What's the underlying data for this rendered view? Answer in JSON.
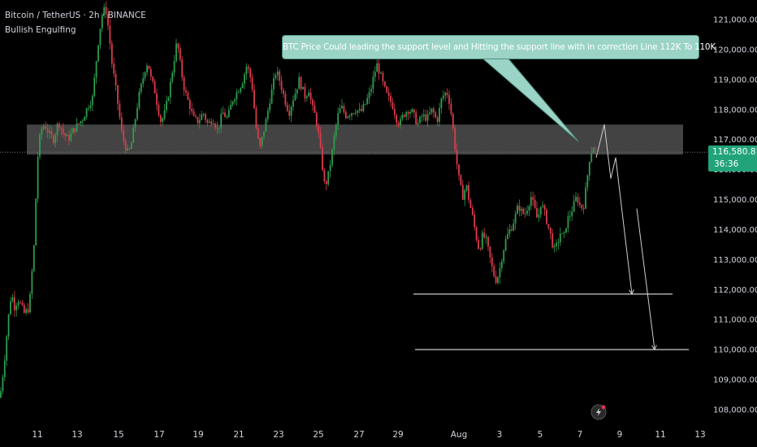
{
  "header": {
    "symbol_line": "Bitcoin / TetherUS · 2h · BINANCE",
    "indicator": "Bullish Engulfing"
  },
  "annotation": {
    "text": "BTC Price Could leading the support level and Hitting the support line with in correction Line 112K To 110K"
  },
  "last_price": {
    "value": "116,580.81",
    "countdown": "36:36"
  },
  "colors": {
    "background": "#000000",
    "up_candle": "#2e9e4f",
    "down_candle": "#d93d4b",
    "zone": "#5a5a5a",
    "callout": "#9bd4c6",
    "price_tag": "#22a37a"
  },
  "icons": [
    "lightning-icon"
  ],
  "chart_data": {
    "type": "candlestick",
    "ylim": [
      107800,
      121400
    ],
    "y_ticks": [
      "108,000.00",
      "109,000.00",
      "110,000.00",
      "111,000.00",
      "112,000.00",
      "113,000.00",
      "114,000.00",
      "115,000.00",
      "116,000.00",
      "117,000.00",
      "118,000.00",
      "119,000.00",
      "120,000.00",
      "121,000.00"
    ],
    "x_ticks": [
      "11",
      "13",
      "15",
      "17",
      "19",
      "21",
      "23",
      "25",
      "27",
      "29",
      "Aug",
      "3",
      "5",
      "7",
      "9",
      "11",
      "13"
    ],
    "price_path": [
      [
        0,
        108400
      ],
      [
        5,
        109500
      ],
      [
        10,
        111000
      ],
      [
        14,
        111900
      ],
      [
        18,
        111400
      ],
      [
        22,
        111700
      ],
      [
        30,
        111200
      ],
      [
        36,
        111400
      ],
      [
        42,
        113500
      ],
      [
        46,
        116300
      ],
      [
        50,
        117300
      ],
      [
        55,
        117500
      ],
      [
        60,
        117200
      ],
      [
        66,
        117000
      ],
      [
        72,
        117600
      ],
      [
        78,
        117200
      ],
      [
        84,
        117000
      ],
      [
        90,
        117300
      ],
      [
        96,
        117500
      ],
      [
        102,
        117700
      ],
      [
        108,
        118100
      ],
      [
        114,
        118400
      ],
      [
        118,
        119500
      ],
      [
        122,
        120500
      ],
      [
        126,
        121200
      ],
      [
        130,
        121400
      ],
      [
        134,
        120600
      ],
      [
        138,
        119500
      ],
      [
        142,
        118800
      ],
      [
        146,
        118000
      ],
      [
        150,
        117200
      ],
      [
        154,
        116800
      ],
      [
        158,
        116500
      ],
      [
        162,
        116900
      ],
      [
        166,
        117600
      ],
      [
        170,
        118300
      ],
      [
        174,
        118800
      ],
      [
        178,
        119300
      ],
      [
        182,
        119600
      ],
      [
        186,
        119000
      ],
      [
        190,
        118700
      ],
      [
        194,
        118100
      ],
      [
        198,
        117600
      ],
      [
        202,
        117800
      ],
      [
        206,
        118300
      ],
      [
        210,
        118900
      ],
      [
        214,
        119600
      ],
      [
        218,
        120300
      ],
      [
        222,
        119500
      ],
      [
        226,
        118800
      ],
      [
        230,
        118400
      ],
      [
        234,
        118100
      ],
      [
        238,
        117700
      ],
      [
        244,
        117600
      ],
      [
        250,
        117900
      ],
      [
        256,
        117500
      ],
      [
        262,
        117700
      ],
      [
        268,
        117300
      ],
      [
        274,
        117900
      ],
      [
        280,
        117700
      ],
      [
        286,
        118300
      ],
      [
        292,
        118600
      ],
      [
        298,
        118900
      ],
      [
        304,
        119500
      ],
      [
        310,
        118900
      ],
      [
        316,
        117200
      ],
      [
        320,
        116700
      ],
      [
        324,
        117200
      ],
      [
        328,
        117700
      ],
      [
        332,
        118300
      ],
      [
        336,
        118800
      ],
      [
        340,
        119300
      ],
      [
        344,
        119000
      ],
      [
        348,
        118600
      ],
      [
        352,
        118200
      ],
      [
        356,
        117900
      ],
      [
        360,
        118300
      ],
      [
        364,
        118600
      ],
      [
        368,
        119000
      ],
      [
        372,
        118700
      ],
      [
        376,
        118400
      ],
      [
        380,
        118700
      ],
      [
        384,
        118100
      ],
      [
        388,
        117800
      ],
      [
        392,
        117200
      ],
      [
        396,
        116300
      ],
      [
        400,
        115400
      ],
      [
        404,
        115800
      ],
      [
        408,
        116400
      ],
      [
        412,
        117200
      ],
      [
        416,
        117800
      ],
      [
        420,
        118100
      ],
      [
        426,
        117800
      ],
      [
        432,
        117900
      ],
      [
        438,
        118000
      ],
      [
        444,
        117900
      ],
      [
        450,
        118200
      ],
      [
        456,
        118600
      ],
      [
        460,
        119100
      ],
      [
        464,
        119500
      ],
      [
        468,
        119200
      ],
      [
        472,
        118800
      ],
      [
        476,
        118500
      ],
      [
        480,
        118300
      ],
      [
        484,
        118100
      ],
      [
        488,
        117700
      ],
      [
        492,
        117500
      ],
      [
        496,
        117800
      ],
      [
        502,
        118000
      ],
      [
        508,
        117900
      ],
      [
        514,
        117500
      ],
      [
        520,
        117800
      ],
      [
        526,
        117700
      ],
      [
        532,
        118000
      ],
      [
        538,
        117600
      ],
      [
        544,
        118400
      ],
      [
        550,
        118600
      ],
      [
        554,
        118200
      ],
      [
        558,
        117300
      ],
      [
        562,
        116300
      ],
      [
        566,
        115500
      ],
      [
        570,
        115100
      ],
      [
        574,
        115500
      ],
      [
        578,
        114900
      ],
      [
        582,
        114400
      ],
      [
        586,
        113800
      ],
      [
        590,
        113300
      ],
      [
        594,
        113800
      ],
      [
        598,
        113700
      ],
      [
        602,
        113200
      ],
      [
        606,
        112700
      ],
      [
        610,
        112300
      ],
      [
        614,
        112500
      ],
      [
        618,
        113100
      ],
      [
        622,
        113600
      ],
      [
        626,
        113900
      ],
      [
        630,
        114100
      ],
      [
        634,
        114400
      ],
      [
        638,
        114800
      ],
      [
        642,
        114600
      ],
      [
        646,
        114500
      ],
      [
        650,
        114800
      ],
      [
        654,
        115100
      ],
      [
        658,
        114700
      ],
      [
        662,
        114300
      ],
      [
        666,
        114900
      ],
      [
        670,
        114600
      ],
      [
        674,
        114200
      ],
      [
        678,
        113800
      ],
      [
        682,
        113300
      ],
      [
        686,
        113500
      ],
      [
        690,
        113900
      ],
      [
        694,
        113700
      ],
      [
        698,
        114300
      ],
      [
        702,
        114500
      ],
      [
        706,
        114800
      ],
      [
        710,
        115100
      ],
      [
        714,
        114800
      ],
      [
        718,
        114700
      ],
      [
        722,
        115500
      ],
      [
        726,
        116400
      ],
      [
        730,
        116800
      ],
      [
        734,
        116580
      ]
    ],
    "zone": {
      "from": 116500,
      "to": 117500
    },
    "support_levels": [
      111850,
      110000
    ],
    "projection_path": [
      [
        734,
        116400
      ],
      [
        744,
        117500
      ],
      [
        752,
        115700
      ],
      [
        758,
        116400
      ],
      [
        778,
        111850
      ]
    ],
    "projection_path_2": [
      [
        784,
        114700
      ],
      [
        806,
        110000
      ]
    ]
  }
}
